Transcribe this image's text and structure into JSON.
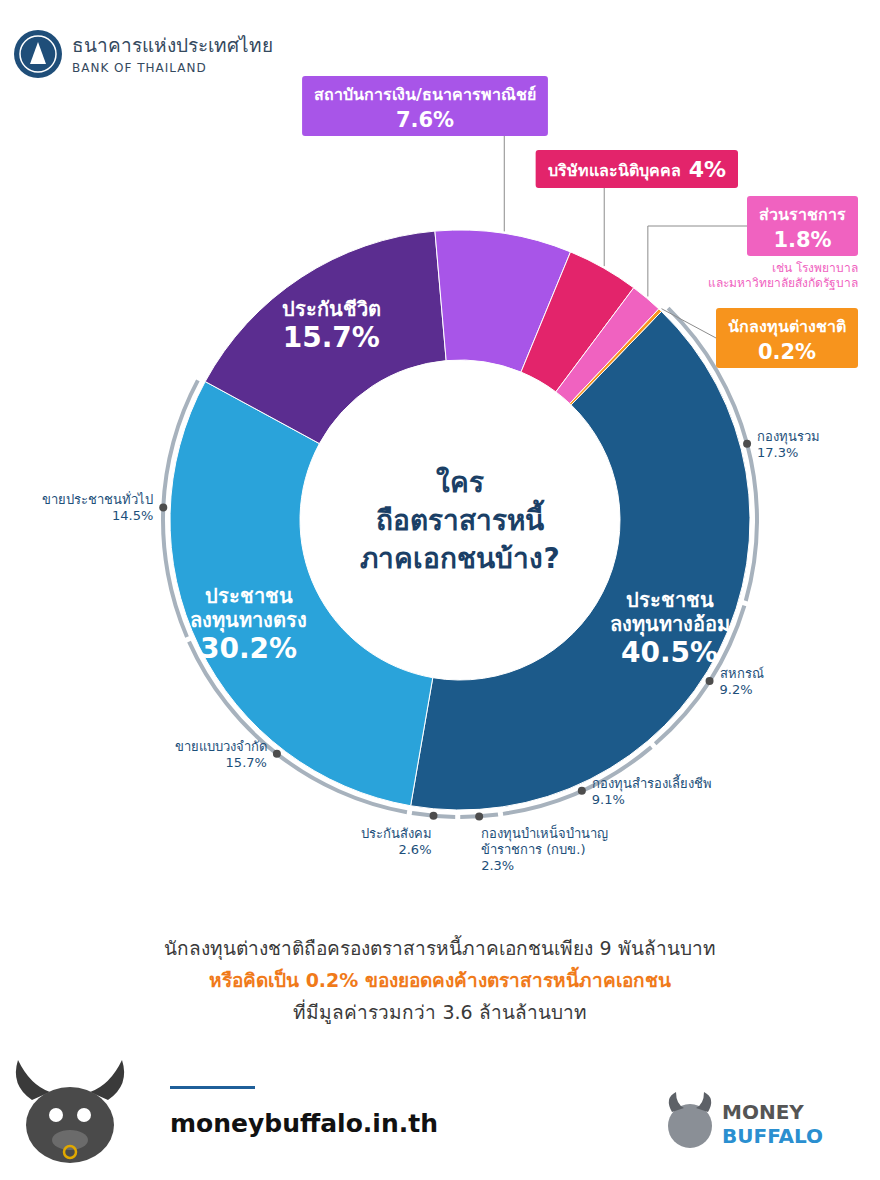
{
  "header": {
    "title": "ธนาคารแห่งประเทศไทย",
    "subtitle": "BANK OF THAILAND"
  },
  "chart_data": {
    "type": "pie",
    "title": "ใคร\nถือตราสารหนี้\nภาคเอกชนบ้าง?",
    "categories": [
      "ประชาชน\nลงทุนทางอ้อม",
      "ประชาชน\nลงทุนทางตรง",
      "ประกันชีวิต",
      "สถาบันการเงิน/ธนาคารพาณิชย์",
      "บริษัทและนิติบุคคล",
      "ส่วนราชการ",
      "นักลงทุนต่างชาติ"
    ],
    "values": [
      40.5,
      30.2,
      15.7,
      7.6,
      4,
      1.8,
      0.2
    ],
    "value_labels": [
      "40.5%",
      "30.2%",
      "15.7%",
      "7.6%",
      "4%",
      "1.8%",
      "0.2%"
    ],
    "colors": [
      "#1c5a8a",
      "#2aa3da",
      "#5b2d90",
      "#a855e8",
      "#e3246b",
      "#f062c0",
      "#f7941d"
    ],
    "data_labels": true,
    "annotations": [
      "เช่น โรงพยาบาล\nและมหาวิทยาลัยสังกัดรัฐบาล"
    ],
    "breakdowns": [
      {
        "categories": [
          "กองทุนรวม",
          "สหกรณ์",
          "กองทุนสำรองเลี้ยงชีพ",
          "กองทุนบำเหน็จบำนาญ\nข้าราชการ (กบข.)",
          "ประกันสังคม"
        ],
        "values": [
          17.3,
          9.2,
          9.1,
          2.3,
          2.6
        ],
        "value_labels": [
          "17.3%",
          "9.2%",
          "9.1%",
          "2.3%",
          "2.6%"
        ]
      },
      {
        "categories": [
          "ขายแบบวงจำกัด",
          "ขายประชาชนทั่วไป"
        ],
        "values": [
          15.7,
          14.5
        ],
        "value_labels": [
          "15.7%",
          "14.5%"
        ]
      },
      null,
      null,
      null,
      null,
      null
    ]
  },
  "footnote": [
    "นักลงทุนต่างชาติถือครองตราสารหนี้ภาคเอกชนเพียง 9 พันล้านบาท",
    "หรือคิดเป็น 0.2% ของยอดคงค้างตราสารหนี้ภาคเอกชน",
    "ที่มีมูลค่ารวมกว่า 3.6 ล้านล้านบาท"
  ],
  "footer": {
    "website": "moneybuffalo.in.th",
    "brand": [
      "MONEY",
      "BUFFALO"
    ]
  }
}
